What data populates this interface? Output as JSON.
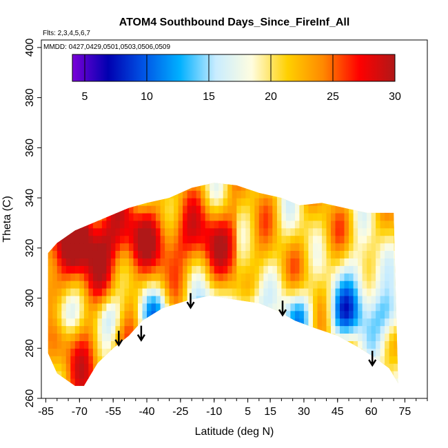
{
  "chart_data": {
    "type": "heatmap",
    "title": "ATOM4 Southbound Days_Since_FireInf_All",
    "flights_note": "Flts: 2,3,4,5,6,7",
    "dates_note": "MMDD: 0427,0429,0501,0503,0506,0509",
    "xlabel": "Latitude (deg N)",
    "ylabel": "Theta (C)",
    "xlim": [
      -87,
      85
    ],
    "ylim": [
      260,
      403
    ],
    "x_ticks": [
      -85,
      -70,
      -55,
      -40,
      -25,
      -10,
      5,
      15,
      30,
      45,
      60,
      75
    ],
    "y_ticks": [
      260,
      280,
      300,
      320,
      340,
      360,
      380,
      400
    ],
    "colorbar": {
      "min": 4,
      "max": 30,
      "ticks": [
        5,
        10,
        15,
        20,
        25,
        30
      ],
      "colors": [
        "#7a00d8",
        "#0000b0",
        "#0055e6",
        "#00b0ff",
        "#c8ecff",
        "#fffde0",
        "#ffd000",
        "#ff8800",
        "#ff0000",
        "#b01818"
      ]
    },
    "coverage": {
      "bottom": [
        [
          -84,
          278
        ],
        [
          -80,
          270
        ],
        [
          -72,
          265
        ],
        [
          -68,
          265
        ],
        [
          -62,
          274
        ],
        [
          -55,
          280
        ],
        [
          -48,
          285
        ],
        [
          -42,
          291
        ],
        [
          -33,
          296
        ],
        [
          -22,
          299
        ],
        [
          -12,
          301
        ],
        [
          -5,
          300
        ],
        [
          2,
          299
        ],
        [
          10,
          298
        ],
        [
          18,
          295
        ],
        [
          26,
          291
        ],
        [
          35,
          288
        ],
        [
          45,
          285
        ],
        [
          55,
          280
        ],
        [
          62,
          276
        ],
        [
          68,
          272
        ],
        [
          72,
          266
        ]
      ],
      "top": [
        [
          -84,
          318
        ],
        [
          -80,
          322
        ],
        [
          -72,
          327
        ],
        [
          -64,
          330
        ],
        [
          -56,
          333
        ],
        [
          -48,
          336
        ],
        [
          -40,
          338
        ],
        [
          -30,
          340
        ],
        [
          -20,
          344
        ],
        [
          -10,
          346
        ],
        [
          0,
          345
        ],
        [
          10,
          342
        ],
        [
          20,
          340
        ],
        [
          28,
          337
        ],
        [
          38,
          338
        ],
        [
          48,
          336
        ],
        [
          58,
          334
        ],
        [
          66,
          334
        ],
        [
          70,
          334
        ],
        [
          72,
          266
        ]
      ]
    },
    "arrows": [
      [
        -52.5,
        287
      ],
      [
        -42.5,
        289
      ],
      [
        -20.5,
        302
      ],
      [
        20.5,
        299
      ],
      [
        60.5,
        279
      ]
    ]
  }
}
